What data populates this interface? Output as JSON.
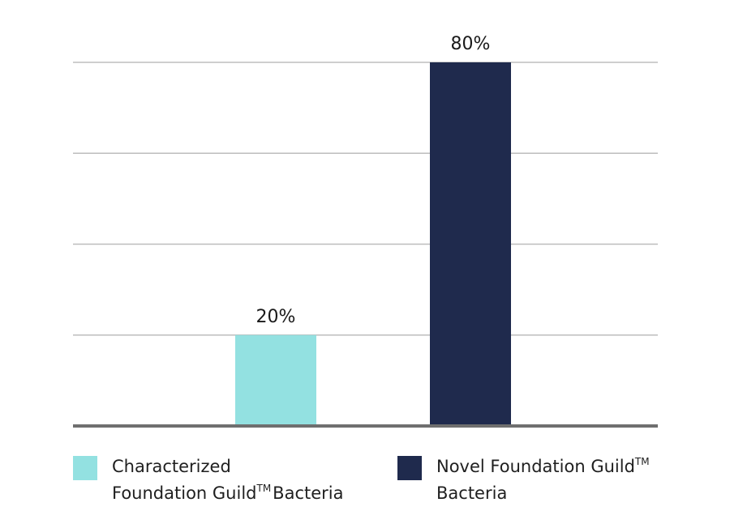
{
  "chart_data": {
    "type": "bar",
    "categories": [
      "Characterized Foundation Guild™ Bacteria",
      "Novel Foundation Guild™ Bacteria"
    ],
    "values": [
      20,
      80
    ],
    "value_labels": [
      "20%",
      "80%"
    ],
    "ylim": [
      0,
      80
    ],
    "grid": true,
    "legend_position": "bottom",
    "colors": [
      "#93E1E1",
      "#1F2A4D"
    ]
  },
  "legend": [
    {
      "line1": "Characterized",
      "line2_main": "Foundation Guild",
      "line2_tm": "TM",
      "line2_rest": "Bacteria",
      "color": "#93E1E1"
    },
    {
      "line1_main": "Novel Foundation Guild",
      "line1_tm": "TM",
      "line2": "Bacteria",
      "color": "#1F2A4D"
    }
  ]
}
